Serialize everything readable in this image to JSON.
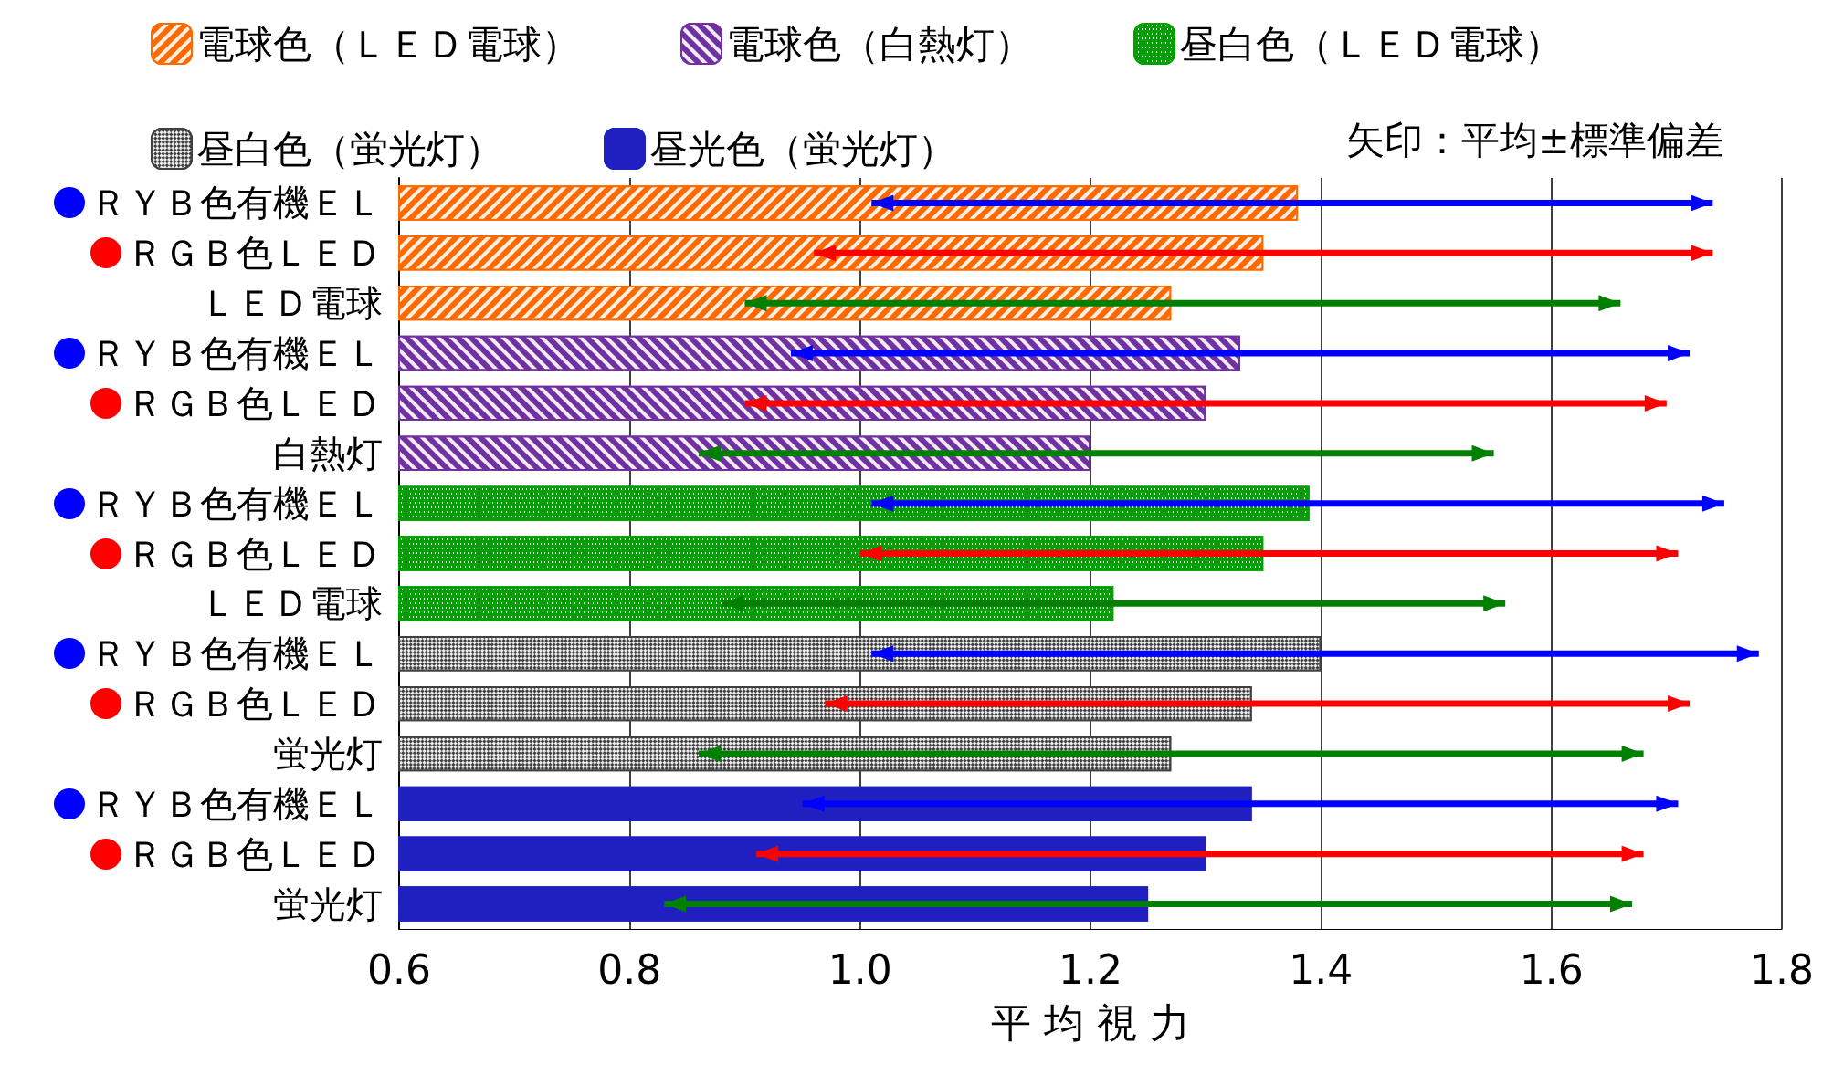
{
  "chart_data": {
    "type": "bar",
    "orientation": "horizontal",
    "xlabel": "平 均 視 力",
    "legend": "top",
    "grid": "x",
    "categories": [
      "ＲＹＢ色有機ＥＬ",
      "ＲＧＢ色ＬＥＤ",
      "ＬＥＤ電球",
      "ＲＹＢ色有機ＥＬ",
      "ＲＧＢ色ＬＥＤ",
      "白熱灯",
      "ＲＹＢ色有機ＥＬ",
      "ＲＧＢ色ＬＥＤ",
      "ＬＥＤ電球",
      "ＲＹＢ色有機ＥＬ",
      "ＲＧＢ色ＬＥＤ",
      "蛍光灯",
      "ＲＹＢ色有機ＥＬ",
      "ＲＧＢ色ＬＥＤ",
      "蛍光灯"
    ],
    "xlim": [
      0.6,
      1.8
    ],
    "xticks": [
      0.6,
      0.8,
      {
        "value": 1,
        "label": "1.0"
      },
      1.2,
      1.4,
      1.6,
      1.8
    ],
    "series": [
      {
        "name": "電球色（ＬＥＤ電球）",
        "color": "#ff6a00",
        "values": [
          1.38,
          1.35,
          1.27,
          null,
          null,
          null,
          null,
          null,
          null,
          null,
          null,
          null,
          null,
          null,
          null
        ],
        "errors": [
          [
            1.01,
            1.74
          ],
          [
            0.96,
            1.74
          ],
          [
            0.9,
            1.66
          ],
          null,
          null,
          null,
          null,
          null,
          null,
          null,
          null,
          null,
          null,
          null,
          null
        ]
      },
      {
        "name": "電球色（白熱灯）",
        "color": "#7030a0",
        "values": [
          null,
          null,
          null,
          1.33,
          1.3,
          1.2,
          null,
          null,
          null,
          null,
          null,
          null,
          null,
          null,
          null
        ],
        "errors": [
          null,
          null,
          null,
          [
            0.94,
            1.72
          ],
          [
            0.9,
            1.7
          ],
          [
            0.86,
            1.55
          ],
          null,
          null,
          null,
          null,
          null,
          null,
          null,
          null,
          null
        ]
      },
      {
        "name": "昼白色（ＬＥＤ電球）",
        "color": "#00a000",
        "values": [
          null,
          null,
          null,
          null,
          null,
          null,
          1.39,
          1.35,
          1.22,
          null,
          null,
          null,
          null,
          null,
          null
        ],
        "errors": [
          null,
          null,
          null,
          null,
          null,
          null,
          [
            1.01,
            1.75
          ],
          [
            1.0,
            1.71
          ],
          [
            0.88,
            1.56
          ],
          null,
          null,
          null,
          null,
          null,
          null
        ]
      },
      {
        "name": "昼白色（蛍光灯）",
        "color": "#404040",
        "values": [
          null,
          null,
          null,
          null,
          null,
          null,
          null,
          null,
          null,
          1.4,
          1.34,
          1.27,
          null,
          null,
          null
        ],
        "errors": [
          null,
          null,
          null,
          null,
          null,
          null,
          null,
          null,
          null,
          [
            1.01,
            1.78
          ],
          [
            0.97,
            1.72
          ],
          [
            0.86,
            1.68
          ],
          null,
          null,
          null
        ]
      },
      {
        "name": "昼光色（蛍光灯）",
        "color": "#2020c0",
        "values": [
          null,
          null,
          null,
          null,
          null,
          null,
          null,
          null,
          null,
          null,
          null,
          null,
          1.34,
          1.3,
          1.25
        ],
        "errors": [
          null,
          null,
          null,
          null,
          null,
          null,
          null,
          null,
          null,
          null,
          null,
          null,
          [
            0.95,
            1.71
          ],
          [
            0.91,
            1.68
          ],
          [
            0.83,
            1.67
          ]
        ]
      }
    ],
    "annotations": [
      "矢印：平均±標準偏差"
    ]
  }
}
